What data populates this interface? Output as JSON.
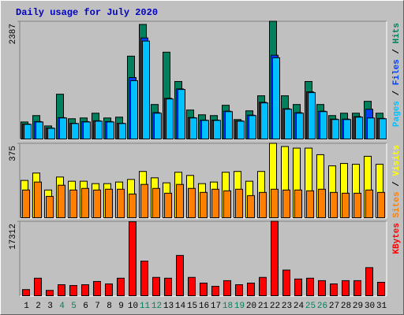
{
  "chart_data": [
    {
      "type": "bar",
      "title": "Daily usage for July 2020",
      "ylim": [
        0,
        2387
      ],
      "yticks": [
        2387
      ],
      "separator": "/",
      "series": [
        {
          "name": "Hits",
          "color": "#00805c",
          "values": [
            352,
            481,
            272,
            913,
            417,
            433,
            529,
            433,
            449,
            1682,
            2323,
            705,
            1762,
            1170,
            593,
            497,
            481,
            689,
            401,
            577,
            881,
            2387,
            881,
            705,
            1170,
            705,
            481,
            529,
            529,
            769,
            529
          ]
        },
        {
          "name": "Files",
          "color": "#0040ff",
          "values": [
            310,
            360,
            230,
            440,
            325,
            360,
            375,
            360,
            325,
            1250,
            2050,
            540,
            830,
            1020,
            440,
            390,
            390,
            570,
            375,
            490,
            750,
            1700,
            620,
            540,
            960,
            570,
            410,
            410,
            460,
            609,
            425
          ]
        },
        {
          "name": "Pages",
          "color": "#00c0ff",
          "values": [
            304,
            352,
            224,
            433,
            320,
            352,
            368,
            352,
            320,
            1186,
            1987,
            529,
            817,
            1009,
            433,
            384,
            384,
            561,
            368,
            481,
            737,
            1650,
            609,
            529,
            945,
            561,
            401,
            401,
            449,
            433,
            417
          ]
        }
      ]
    },
    {
      "type": "bar",
      "ylim": [
        0,
        375
      ],
      "yticks": [
        375
      ],
      "separator": "/",
      "series": [
        {
          "name": "Visits",
          "color": "#ffff00",
          "values": [
            189,
            226,
            141,
            206,
            185,
            185,
            173,
            173,
            181,
            194,
            234,
            202,
            177,
            230,
            214,
            173,
            181,
            230,
            234,
            185,
            234,
            375,
            359,
            351,
            351,
            318,
            262,
            274,
            270,
            310,
            270
          ]
        },
        {
          "name": "Sites",
          "color": "#ff8000",
          "values": [
            141,
            181,
            109,
            165,
            141,
            149,
            141,
            145,
            145,
            121,
            169,
            149,
            125,
            169,
            149,
            129,
            145,
            137,
            145,
            113,
            129,
            145,
            141,
            141,
            137,
            145,
            129,
            125,
            125,
            141,
            129
          ]
        }
      ]
    },
    {
      "type": "bar",
      "ylim": [
        0,
        17312
      ],
      "yticks": [
        17312
      ],
      "categories": [
        "1",
        "2",
        "3",
        "4",
        "5",
        "6",
        "7",
        "8",
        "9",
        "10",
        "11",
        "12",
        "13",
        "14",
        "15",
        "16",
        "17",
        "18",
        "19",
        "20",
        "21",
        "22",
        "23",
        "24",
        "25",
        "26",
        "27",
        "28",
        "29",
        "30",
        "31"
      ],
      "highlight_categories": [
        "4",
        "5",
        "11",
        "12",
        "18",
        "19",
        "25",
        "26"
      ],
      "highlight_color": "#00805c",
      "series": [
        {
          "name": "KBytes",
          "color": "#ff0000",
          "values": [
            1505,
            4140,
            1317,
            2634,
            2446,
            2634,
            3387,
            2823,
            4140,
            17200,
            8092,
            4328,
            4140,
            9409,
            4328,
            3011,
            2258,
            3575,
            2634,
            3011,
            4328,
            17312,
            6022,
            3952,
            4140,
            3575,
            2823,
            3575,
            3575,
            6587,
            3199
          ]
        }
      ]
    }
  ]
}
